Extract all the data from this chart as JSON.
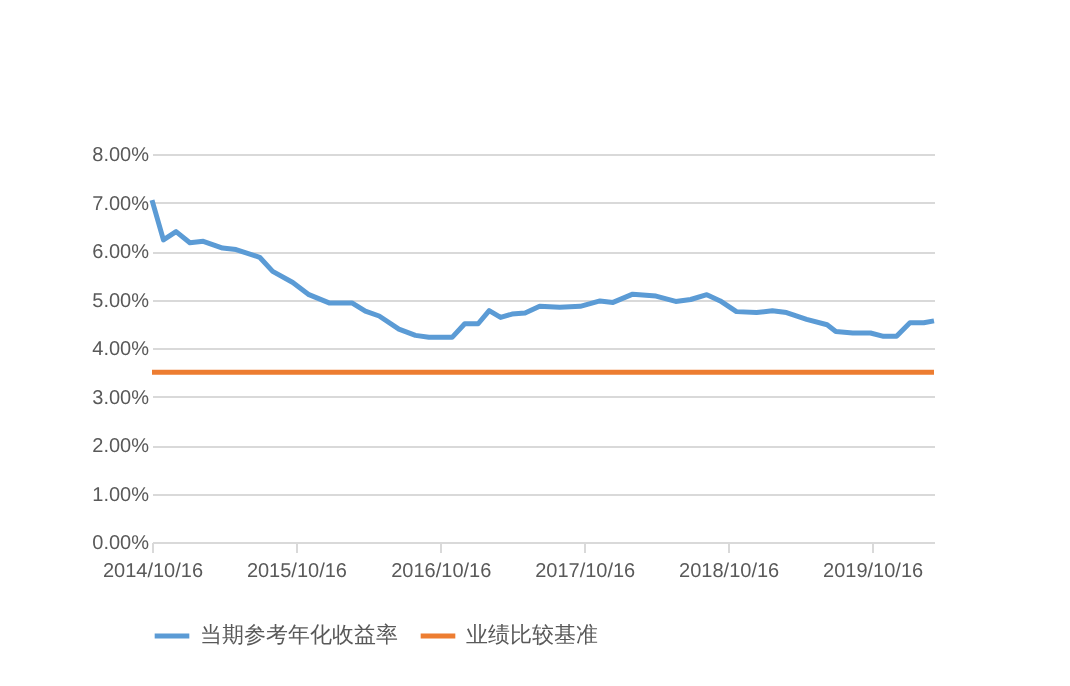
{
  "chart_data": {
    "type": "line",
    "x": [
      "2014-10-16",
      "2014-11-14",
      "2014-12-16",
      "2015-01-20",
      "2015-02-23",
      "2015-04-13",
      "2015-05-17",
      "2015-07-16",
      "2015-08-18",
      "2015-10-08",
      "2015-11-18",
      "2016-01-08",
      "2016-03-06",
      "2016-04-09",
      "2016-05-14",
      "2016-07-03",
      "2016-08-14",
      "2016-09-17",
      "2016-11-15",
      "2016-12-17",
      "2017-01-20",
      "2017-02-17",
      "2017-03-18",
      "2017-04-16",
      "2017-05-19",
      "2017-06-25",
      "2017-08-15",
      "2017-10-06",
      "2017-11-25",
      "2017-12-28",
      "2018-02-16",
      "2018-04-16",
      "2018-06-05",
      "2018-07-13",
      "2018-08-23",
      "2018-09-26",
      "2018-11-06",
      "2018-12-27",
      "2019-02-05",
      "2019-03-13",
      "2019-05-03",
      "2019-06-24",
      "2019-07-16",
      "2019-08-28",
      "2019-10-12",
      "2019-11-14",
      "2019-12-17",
      "2020-01-20",
      "2020-02-24",
      "2020-03-21"
    ],
    "series": [
      {
        "name": "当期参考年化收益率",
        "color": "#5b9bd5",
        "values": [
          7.05,
          6.23,
          6.4,
          6.17,
          6.2,
          6.06,
          6.03,
          5.87,
          5.58,
          5.35,
          5.1,
          4.93,
          4.93,
          4.76,
          4.66,
          4.39,
          4.26,
          4.22,
          4.22,
          4.5,
          4.5,
          4.77,
          4.63,
          4.7,
          4.72,
          4.86,
          4.84,
          4.86,
          4.97,
          4.94,
          5.11,
          5.07,
          4.96,
          5.0,
          5.1,
          4.97,
          4.75,
          4.73,
          4.77,
          4.73,
          4.59,
          4.48,
          4.34,
          4.31,
          4.31,
          4.24,
          4.24,
          4.52,
          4.52,
          4.56
        ]
      },
      {
        "name": "业绩比较基准",
        "color": "#ed7d31",
        "x": [
          "2014-10-16",
          "2020-03-21"
        ],
        "values": [
          3.5,
          3.5
        ]
      }
    ],
    "xlim": [
      "2014-10-16",
      "2020-03-21"
    ],
    "xticks": [
      {
        "value": "2014-10-16",
        "label": "2014/10/16"
      },
      {
        "value": "2015-10-16",
        "label": "2015/10/16"
      },
      {
        "value": "2016-10-16",
        "label": "2016/10/16"
      },
      {
        "value": "2017-10-16",
        "label": "2017/10/16"
      },
      {
        "value": "2018-10-16",
        "label": "2018/10/16"
      },
      {
        "value": "2019-10-16",
        "label": "2019/10/16"
      }
    ],
    "ylim": [
      0,
      8
    ],
    "yticks": [
      {
        "value": 0,
        "label": "0.00%"
      },
      {
        "value": 1,
        "label": "1.00%"
      },
      {
        "value": 2,
        "label": "2.00%"
      },
      {
        "value": 3,
        "label": "3.00%"
      },
      {
        "value": 4,
        "label": "4.00%"
      },
      {
        "value": 5,
        "label": "5.00%"
      },
      {
        "value": 6,
        "label": "6.00%"
      },
      {
        "value": 7,
        "label": "7.00%"
      },
      {
        "value": 8,
        "label": "8.00%"
      }
    ],
    "grid": "y",
    "legend": "bottom",
    "marker": "none",
    "line_style": "solid"
  }
}
